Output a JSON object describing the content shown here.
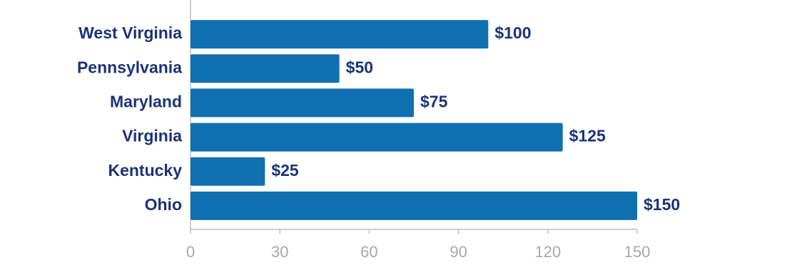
{
  "chart_data": {
    "type": "bar",
    "orientation": "horizontal",
    "categories": [
      "West Virginia",
      "Pennsylvania",
      "Maryland",
      "Virginia",
      "Kentucky",
      "Ohio"
    ],
    "values": [
      100,
      50,
      75,
      125,
      25,
      150
    ],
    "value_labels": [
      "$100",
      "$50",
      "$75",
      "$125",
      "$25",
      "$150"
    ],
    "color": "#1170b0",
    "xlim": [
      0,
      150
    ],
    "xticks": [
      0,
      30,
      60,
      90,
      120,
      150
    ]
  }
}
